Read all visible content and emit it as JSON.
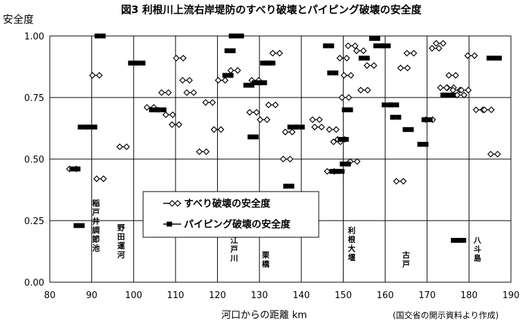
{
  "chart_data": {
    "type": "scatter",
    "title": "図3 利根川上流右岸堤防のすべり破壊とパイピング破壊の安全度",
    "ylabel": "安全度",
    "xlabel": "河口からの距離 km",
    "source_note": "(国交省の開示資料より作成)",
    "xlim": [
      80,
      190
    ],
    "ylim": [
      0,
      1.0
    ],
    "x_ticks": [
      "80",
      "90",
      "100",
      "110",
      "120",
      "130",
      "140",
      "150",
      "160",
      "170",
      "180",
      "190"
    ],
    "y_ticks": [
      "0.00",
      "0.25",
      "0.50",
      "0.75",
      "1.00"
    ],
    "grid": true,
    "legend_position": "center-left",
    "series": [
      {
        "name": "すべり破壊の安全度",
        "marker": "open-diamond-pair",
        "color": "#000000",
        "points": [
          [
            85.5,
            0.46
          ],
          [
            91,
            0.84
          ],
          [
            92,
            0.42
          ],
          [
            97.5,
            0.55
          ],
          [
            104,
            0.71
          ],
          [
            107.5,
            0.77
          ],
          [
            108.5,
            0.68
          ],
          [
            110,
            0.64
          ],
          [
            111,
            0.91
          ],
          [
            112.5,
            0.82
          ],
          [
            113.5,
            0.77
          ],
          [
            116.5,
            0.53
          ],
          [
            118,
            0.73
          ],
          [
            120,
            0.62
          ],
          [
            121,
            0.82
          ],
          [
            124,
            0.86
          ],
          [
            128.5,
            0.69
          ],
          [
            129,
            0.82
          ],
          [
            131,
            0.66
          ],
          [
            133,
            0.72
          ],
          [
            134,
            0.93
          ],
          [
            136.5,
            0.5
          ],
          [
            137,
            0.61
          ],
          [
            143.5,
            0.66
          ],
          [
            144,
            0.63
          ],
          [
            147,
            0.45
          ],
          [
            147.5,
            0.62
          ],
          [
            148.5,
            0.57
          ],
          [
            149.5,
            0.58
          ],
          [
            150,
            0.91
          ],
          [
            150.5,
            0.75
          ],
          [
            151,
            0.84
          ],
          [
            152,
            0.96
          ],
          [
            152.5,
            0.49
          ],
          [
            154,
            0.94
          ],
          [
            155,
            0.78
          ],
          [
            156.5,
            0.88
          ],
          [
            163.5,
            0.41
          ],
          [
            164.5,
            0.87
          ],
          [
            166,
            0.93
          ],
          [
            170.5,
            0.66
          ],
          [
            172,
            0.95
          ],
          [
            173,
            0.97
          ],
          [
            174,
            0.79
          ],
          [
            175.5,
            0.79
          ],
          [
            176,
            0.84
          ],
          [
            177,
            0.78
          ],
          [
            178,
            0.76
          ],
          [
            179,
            0.78
          ],
          [
            180.5,
            0.92
          ],
          [
            182.5,
            0.7
          ],
          [
            184.5,
            0.7
          ],
          [
            186,
            0.52
          ]
        ]
      },
      {
        "name": "パイピング破壊の安全度",
        "marker": "filled-square",
        "color": "#000000",
        "points": [
          [
            86,
            0.46
          ],
          [
            88,
            0.63
          ],
          [
            90,
            0.63
          ],
          [
            92,
            1.0
          ],
          [
            87,
            0.23
          ],
          [
            100,
            0.89
          ],
          [
            101.5,
            0.89
          ],
          [
            105,
            0.7
          ],
          [
            106.5,
            0.7
          ],
          [
            122.5,
            0.84
          ],
          [
            123,
            0.94
          ],
          [
            124,
            1.0
          ],
          [
            125,
            1.0
          ],
          [
            127.5,
            0.8
          ],
          [
            128.5,
            0.59
          ],
          [
            129.5,
            0.81
          ],
          [
            130.5,
            0.81
          ],
          [
            131.5,
            0.89
          ],
          [
            132.5,
            0.89
          ],
          [
            137,
            0.39
          ],
          [
            138,
            0.63
          ],
          [
            139.5,
            0.63
          ],
          [
            146.5,
            0.96
          ],
          [
            147.5,
            0.85
          ],
          [
            148,
            0.45
          ],
          [
            149,
            0.45
          ],
          [
            150,
            0.58
          ],
          [
            150.5,
            0.48
          ],
          [
            151,
            0.7
          ],
          [
            155,
            0.91
          ],
          [
            157.5,
            0.99
          ],
          [
            158.5,
            0.96
          ],
          [
            160,
            0.96
          ],
          [
            160.5,
            0.72
          ],
          [
            162,
            0.72
          ],
          [
            162.5,
            0.67
          ],
          [
            165.5,
            0.62
          ],
          [
            169,
            0.56
          ],
          [
            170,
            0.66
          ],
          [
            174.5,
            0.76
          ],
          [
            175.5,
            0.76
          ],
          [
            177,
            0.17
          ],
          [
            178,
            0.17
          ],
          [
            185.5,
            0.91
          ],
          [
            186.5,
            0.91
          ]
        ]
      }
    ],
    "annotations": [
      {
        "text": "稲戸井調節池",
        "x": 91,
        "y": 0.31
      },
      {
        "text": "野田運河",
        "x": 97,
        "y": 0.21
      },
      {
        "text": "江戸川",
        "x": 124,
        "y": 0.16
      },
      {
        "text": "栗橋",
        "x": 131.5,
        "y": 0.1
      },
      {
        "text": "利根大堰",
        "x": 152,
        "y": 0.2
      },
      {
        "text": "古戸",
        "x": 165,
        "y": 0.1
      },
      {
        "text": "八斗島",
        "x": 182,
        "y": 0.16
      }
    ]
  }
}
